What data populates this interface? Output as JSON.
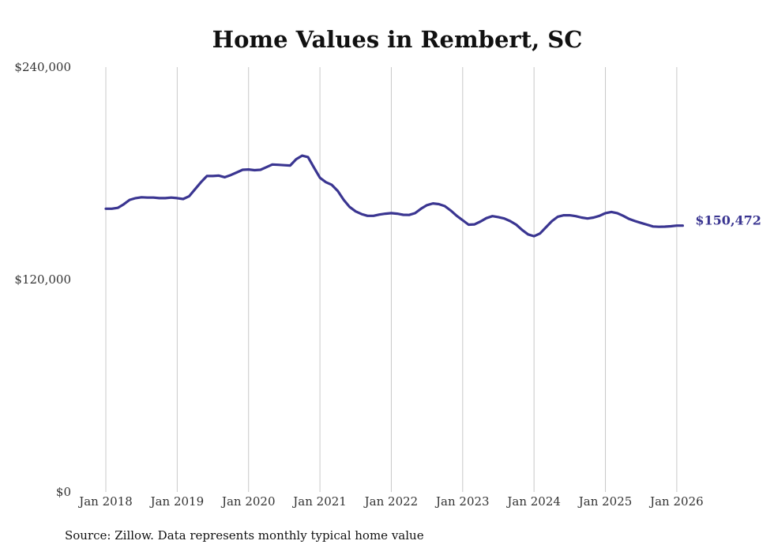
{
  "chart_data": {
    "type": "line",
    "title": "Home Values in Rembert, SC",
    "xlabel": "",
    "ylabel": "",
    "y_ticks": [
      {
        "value": 0,
        "label": "$0"
      },
      {
        "value": 120000,
        "label": "$120,000"
      },
      {
        "value": 240000,
        "label": "$240,000"
      }
    ],
    "ylim": [
      0,
      240000
    ],
    "x_ticks": [
      "Jan 2018",
      "Jan 2019",
      "Jan 2020",
      "Jan 2021",
      "Jan 2022",
      "Jan 2023",
      "Jan 2024",
      "Jan 2025",
      "Jan 2026"
    ],
    "x_start": "2018-01",
    "grid": "vertical",
    "series_color": "#3a3591",
    "end_label": "$150,472",
    "series": [
      {
        "values": [
          160000,
          160000,
          160500,
          162500,
          165000,
          166000,
          166500,
          166300,
          166300,
          166000,
          166000,
          166300,
          166000,
          165500,
          167000,
          171000,
          175000,
          178500,
          178500,
          178700,
          177800,
          179000,
          180500,
          182000,
          182200,
          181800,
          182000,
          183500,
          185000,
          184800,
          184600,
          184400,
          188000,
          190000,
          189200,
          183200,
          177500,
          175000,
          173500,
          170000,
          165000,
          161000,
          158500,
          157000,
          156000,
          156000,
          156700,
          157200,
          157500,
          157200,
          156600,
          156500,
          157500,
          160000,
          162000,
          163000,
          162600,
          161500,
          159000,
          156000,
          153500,
          151000,
          151200,
          152800,
          154700,
          155800,
          155300,
          154500,
          153000,
          151000,
          148000,
          145500,
          144500,
          146000,
          149500,
          153000,
          155500,
          156300,
          156300,
          155800,
          155000,
          154500,
          155000,
          156000,
          157500,
          158200,
          157500,
          156000,
          154200,
          153000,
          152000,
          151000,
          150000,
          149800,
          149900,
          150100,
          150472,
          150472
        ]
      }
    ],
    "source": "Source: Zillow. Data represents monthly typical home value"
  }
}
